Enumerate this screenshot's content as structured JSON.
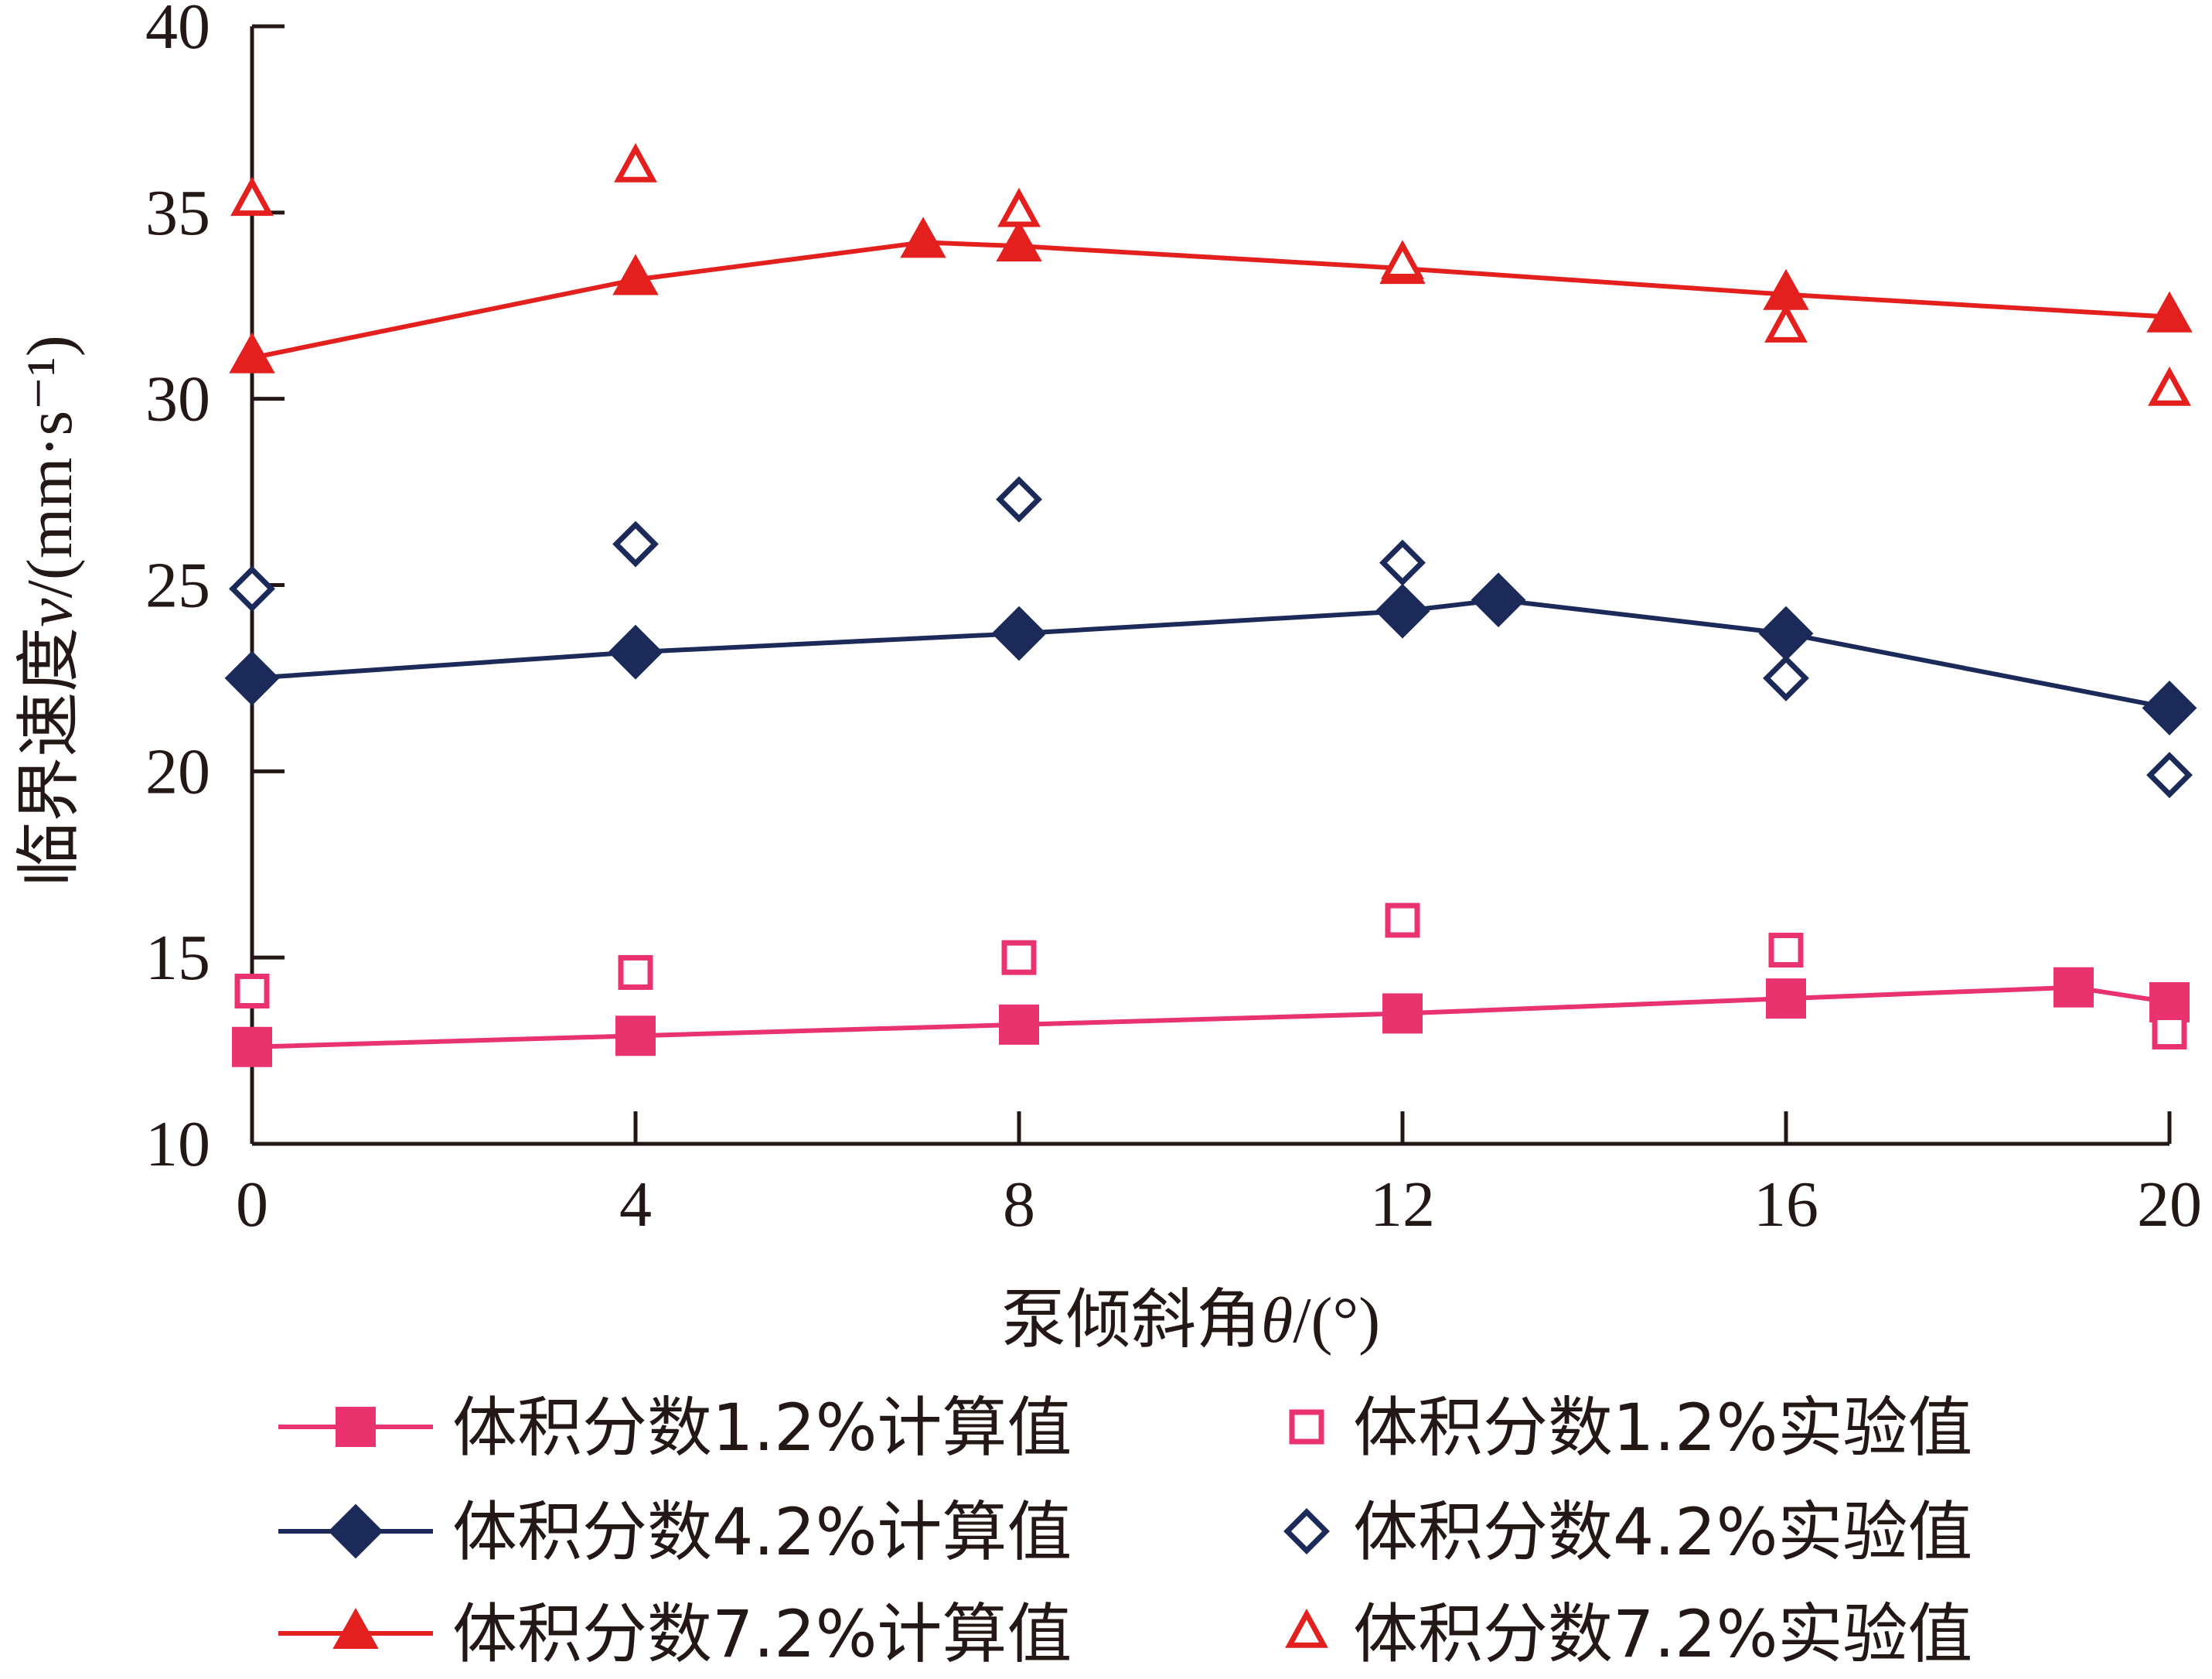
{
  "chart_data": {
    "type": "line",
    "xlabel": {
      "prefix": "泵倾斜角",
      "symbol": "θ",
      "unit": "/(°)"
    },
    "ylabel": {
      "prefix": "临界速度",
      "symbol": "v",
      "unit": "/(mm·s⁻¹)"
    },
    "xlim": [
      0,
      20
    ],
    "ylim": [
      10,
      40
    ],
    "x_ticks": [
      0,
      4,
      8,
      12,
      16,
      20
    ],
    "y_ticks": [
      10,
      15,
      20,
      25,
      30,
      35,
      40
    ],
    "grid": false,
    "legend_position": "bottom",
    "series": [
      {
        "name": "体积分数1.2%计算值",
        "style": "line-filled-square",
        "color": "#e8336e",
        "x": [
          0,
          4,
          8,
          12,
          16,
          19,
          20
        ],
        "values": [
          12.6,
          12.9,
          13.2,
          13.5,
          13.9,
          14.2,
          13.8
        ]
      },
      {
        "name": "体积分数1.2%实验值",
        "style": "open-square",
        "color": "#e8336e",
        "x": [
          0,
          4,
          8,
          12,
          16,
          20
        ],
        "values": [
          14.1,
          14.6,
          15.0,
          16.0,
          15.2,
          13.0
        ]
      },
      {
        "name": "体积分数4.2%计算值",
        "style": "line-filled-diamond",
        "color": "#1c2a5a",
        "x": [
          0,
          4,
          8,
          12,
          13,
          16,
          20
        ],
        "values": [
          22.5,
          23.2,
          23.7,
          24.3,
          24.6,
          23.7,
          21.7
        ]
      },
      {
        "name": "体积分数4.2%实验值",
        "style": "open-diamond",
        "color": "#1c2a5a",
        "x": [
          0,
          4,
          8,
          12,
          16,
          20
        ],
        "values": [
          24.9,
          26.1,
          27.3,
          25.6,
          22.5,
          19.9
        ]
      },
      {
        "name": "体积分数7.2%计算值",
        "style": "line-filled-triangle",
        "color": "#e4201e",
        "x": [
          0,
          4,
          7,
          8,
          12,
          16,
          20
        ],
        "values": [
          31.1,
          33.2,
          34.2,
          34.1,
          33.5,
          32.8,
          32.2
        ]
      },
      {
        "name": "体积分数7.2%实验值",
        "style": "open-triangle",
        "color": "#e4201e",
        "x": [
          0,
          4,
          8,
          12,
          16,
          20
        ],
        "values": [
          35.3,
          36.2,
          35.0,
          33.6,
          31.9,
          30.2
        ]
      }
    ]
  }
}
